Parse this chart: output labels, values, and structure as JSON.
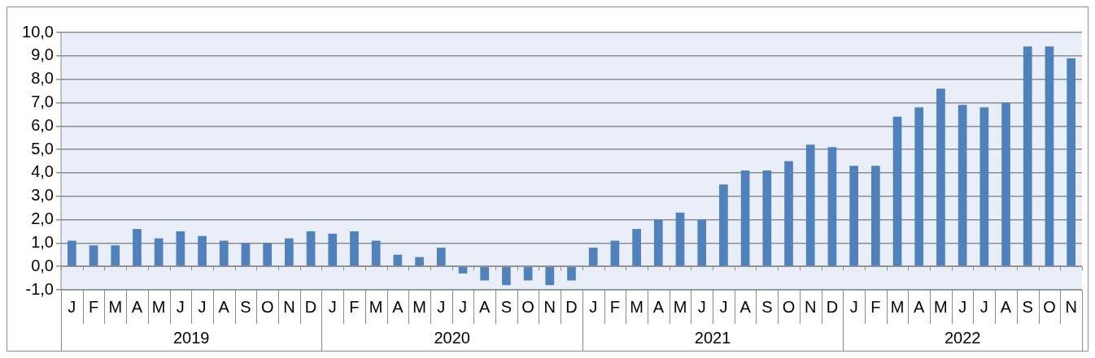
{
  "chart_data": {
    "type": "bar",
    "categories": [
      "J",
      "F",
      "M",
      "A",
      "M",
      "J",
      "J",
      "A",
      "S",
      "O",
      "N",
      "D",
      "J",
      "F",
      "M",
      "A",
      "M",
      "J",
      "J",
      "A",
      "S",
      "O",
      "N",
      "D",
      "J",
      "F",
      "M",
      "A",
      "M",
      "J",
      "J",
      "A",
      "S",
      "O",
      "N",
      "D",
      "J",
      "F",
      "M",
      "A",
      "M",
      "J",
      "J",
      "A",
      "S",
      "O",
      "N"
    ],
    "values": [
      1.1,
      0.9,
      0.9,
      1.6,
      1.2,
      1.5,
      1.3,
      1.1,
      1.0,
      1.0,
      1.2,
      1.5,
      1.4,
      1.5,
      1.1,
      0.5,
      0.4,
      0.8,
      -0.3,
      -0.6,
      -0.8,
      -0.6,
      -0.8,
      -0.6,
      0.8,
      1.1,
      1.6,
      2.0,
      2.3,
      2.0,
      3.5,
      4.1,
      4.1,
      4.5,
      5.2,
      5.1,
      4.3,
      4.3,
      6.4,
      6.8,
      7.6,
      6.9,
      6.8,
      7.0,
      9.4,
      9.4,
      8.9
    ],
    "color": "#4f81bd",
    "ylim": [
      -1,
      10
    ],
    "yticks": [
      {
        "value": -1,
        "label": "-1,0"
      },
      {
        "value": 0,
        "label": "0,0"
      },
      {
        "value": 1,
        "label": "1,0"
      },
      {
        "value": 2,
        "label": "2,0"
      },
      {
        "value": 3,
        "label": "3,0"
      },
      {
        "value": 4,
        "label": "4,0"
      },
      {
        "value": 5,
        "label": "5,0"
      },
      {
        "value": 6,
        "label": "6,0"
      },
      {
        "value": 7,
        "label": "7,0"
      },
      {
        "value": 8,
        "label": "8,0"
      },
      {
        "value": 9,
        "label": "9,0"
      },
      {
        "value": 10,
        "label": "10,0"
      }
    ],
    "grid": "y",
    "annotations": [
      "2019",
      "2020",
      "2021",
      "2022"
    ],
    "legend": false
  }
}
